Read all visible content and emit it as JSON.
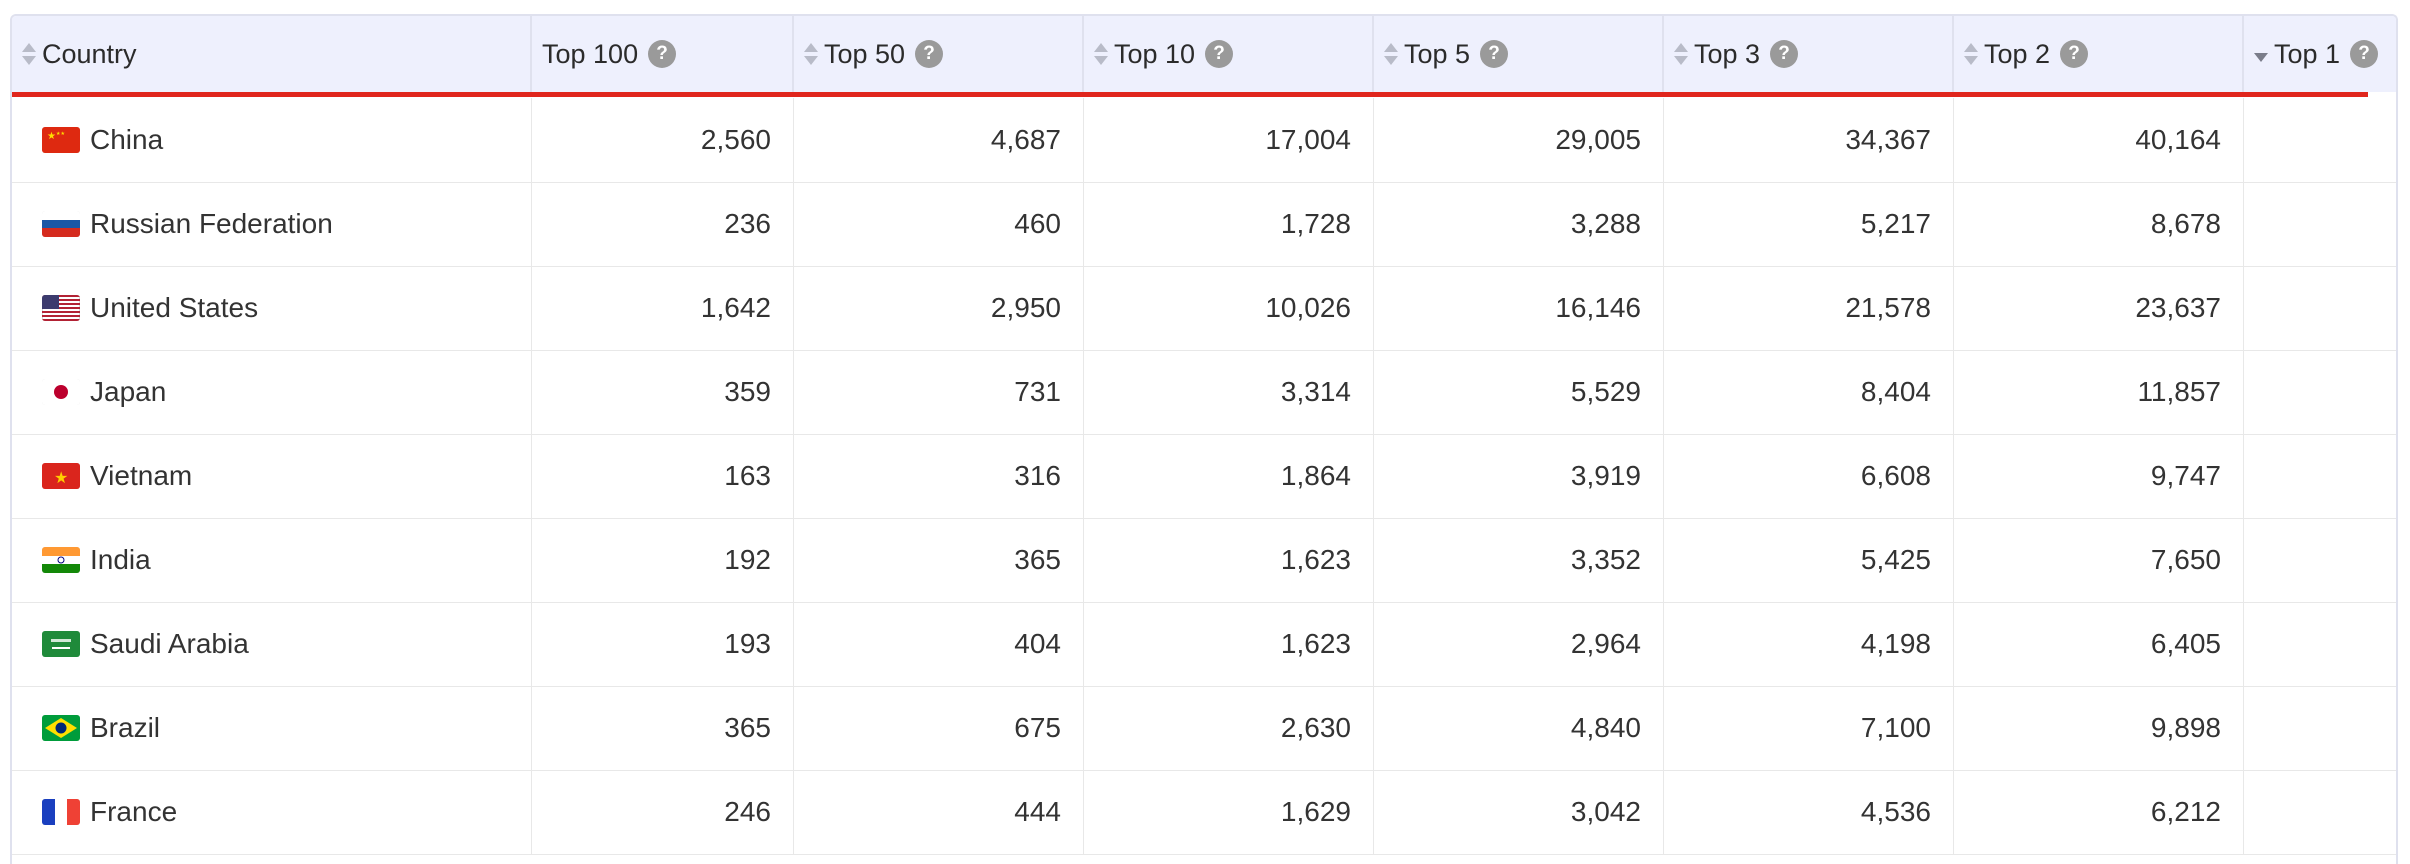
{
  "table": {
    "headers": [
      {
        "label": "Country",
        "sortable": true,
        "active": false,
        "help": false
      },
      {
        "label": "Top 100",
        "sortable": false,
        "active": false,
        "help": true
      },
      {
        "label": "Top 50",
        "sortable": true,
        "active": false,
        "help": true
      },
      {
        "label": "Top 10",
        "sortable": true,
        "active": false,
        "help": true
      },
      {
        "label": "Top 5",
        "sortable": true,
        "active": false,
        "help": true
      },
      {
        "label": "Top 3",
        "sortable": true,
        "active": false,
        "help": true
      },
      {
        "label": "Top 2",
        "sortable": true,
        "active": false,
        "help": true
      },
      {
        "label": "Top 1",
        "sortable": true,
        "active": true,
        "help": true
      }
    ],
    "help_glyph": "?",
    "rows": [
      {
        "country": "China",
        "flag": "china-flag-icon",
        "values": [
          "2,560",
          "4,687",
          "17,004",
          "29,005",
          "34,367",
          "40,164",
          ""
        ]
      },
      {
        "country": "Russian Federation",
        "flag": "russia-flag-icon",
        "values": [
          "236",
          "460",
          "1,728",
          "3,288",
          "5,217",
          "8,678",
          ""
        ]
      },
      {
        "country": "United States",
        "flag": "usa-flag-icon",
        "values": [
          "1,642",
          "2,950",
          "10,026",
          "16,146",
          "21,578",
          "23,637",
          ""
        ]
      },
      {
        "country": "Japan",
        "flag": "japan-flag-icon",
        "values": [
          "359",
          "731",
          "3,314",
          "5,529",
          "8,404",
          "11,857",
          ""
        ]
      },
      {
        "country": "Vietnam",
        "flag": "vietnam-flag-icon",
        "values": [
          "163",
          "316",
          "1,864",
          "3,919",
          "6,608",
          "9,747",
          ""
        ]
      },
      {
        "country": "India",
        "flag": "india-flag-icon",
        "values": [
          "192",
          "365",
          "1,623",
          "3,352",
          "5,425",
          "7,650",
          ""
        ]
      },
      {
        "country": "Saudi Arabia",
        "flag": "saudi-arabia-flag-icon",
        "values": [
          "193",
          "404",
          "1,623",
          "2,964",
          "4,198",
          "6,405",
          ""
        ]
      },
      {
        "country": "Brazil",
        "flag": "brazil-flag-icon",
        "values": [
          "365",
          "675",
          "2,630",
          "4,840",
          "7,100",
          "9,898",
          ""
        ]
      },
      {
        "country": "France",
        "flag": "france-flag-icon",
        "values": [
          "246",
          "444",
          "1,629",
          "3,042",
          "4,536",
          "6,212",
          ""
        ]
      }
    ]
  },
  "colors": {
    "header_bg": "#eef0fd",
    "accent_line": "#e0261d",
    "border": "#dfe1ee"
  }
}
